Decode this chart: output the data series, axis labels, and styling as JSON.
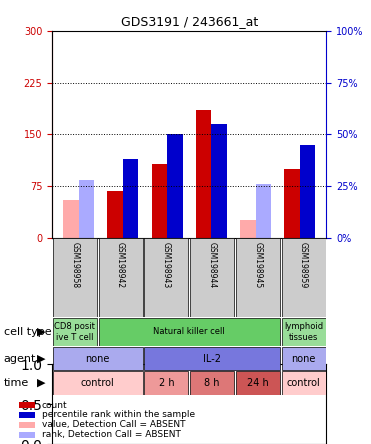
{
  "title": "GDS3191 / 243661_at",
  "samples": [
    "GSM198958",
    "GSM198942",
    "GSM198943",
    "GSM198944",
    "GSM198945",
    "GSM198959"
  ],
  "count_values": [
    0,
    68,
    107,
    185,
    0,
    100
  ],
  "count_absent": [
    55,
    0,
    0,
    0,
    25,
    0
  ],
  "percentile_values": [
    0,
    38,
    50,
    55,
    0,
    45
  ],
  "percentile_absent": [
    28,
    0,
    0,
    0,
    26,
    0
  ],
  "ylim_left": [
    0,
    300
  ],
  "ylim_right": [
    0,
    100
  ],
  "yticks_left": [
    0,
    75,
    150,
    225,
    300
  ],
  "yticks_right": [
    0,
    25,
    50,
    75,
    100
  ],
  "ytick_labels_left": [
    "0",
    "75",
    "150",
    "225",
    "300"
  ],
  "ytick_labels_right": [
    "0%",
    "25%",
    "50%",
    "75%",
    "100%"
  ],
  "hlines": [
    75,
    150,
    225
  ],
  "bar_width": 0.35,
  "count_color": "#cc0000",
  "count_absent_color": "#ffaaaa",
  "percentile_color": "#0000cc",
  "percentile_absent_color": "#aaaaff",
  "cell_type_row": {
    "label": "cell type",
    "cells": [
      {
        "text": "CD8 posit\nive T cell",
        "color": "#99dd99",
        "span": 1
      },
      {
        "text": "Natural killer cell",
        "color": "#66cc66",
        "span": 4
      },
      {
        "text": "lymphoid\ntissues",
        "color": "#99dd99",
        "span": 1
      }
    ]
  },
  "agent_row": {
    "label": "agent",
    "cells": [
      {
        "text": "none",
        "color": "#aaaaee",
        "span": 2
      },
      {
        "text": "IL-2",
        "color": "#7777dd",
        "span": 3
      },
      {
        "text": "none",
        "color": "#aaaaee",
        "span": 1
      }
    ]
  },
  "time_row": {
    "label": "time",
    "cells": [
      {
        "text": "control",
        "color": "#ffcccc",
        "span": 2
      },
      {
        "text": "2 h",
        "color": "#ee9999",
        "span": 1
      },
      {
        "text": "8 h",
        "color": "#dd7777",
        "span": 1
      },
      {
        "text": "24 h",
        "color": "#cc5555",
        "span": 1
      },
      {
        "text": "control",
        "color": "#ffcccc",
        "span": 1
      }
    ]
  },
  "legend_items": [
    {
      "color": "#cc0000",
      "label": "count"
    },
    {
      "color": "#0000cc",
      "label": "percentile rank within the sample"
    },
    {
      "color": "#ffaaaa",
      "label": "value, Detection Call = ABSENT"
    },
    {
      "color": "#aaaaff",
      "label": "rank, Detection Call = ABSENT"
    }
  ],
  "left_axis_color": "#cc0000",
  "right_axis_color": "#0000cc",
  "bg_color": "#ffffff",
  "plot_bg": "#f5f5f5",
  "xticklabel_bg": "#cccccc"
}
